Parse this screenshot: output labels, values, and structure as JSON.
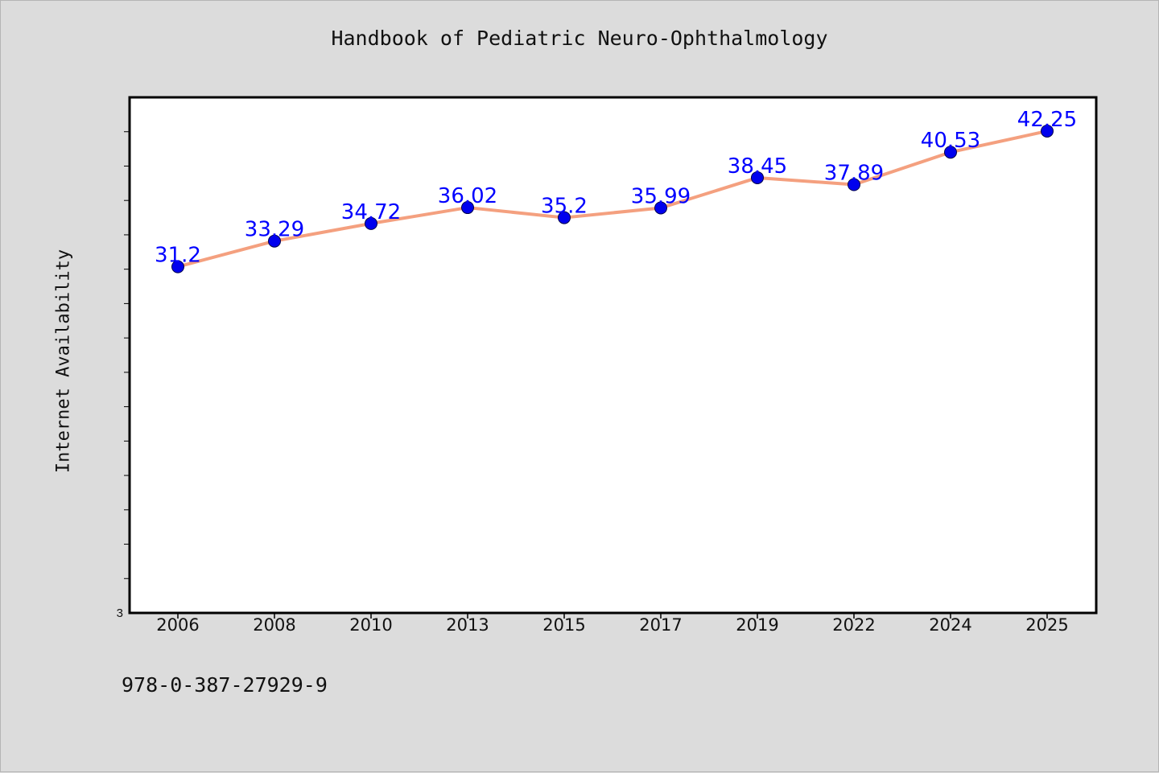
{
  "title": "Handbook of Pediatric Neuro-Ophthalmology",
  "footer_text": "978-0-387-27929-9",
  "colors": {
    "background": "#dcdcdc",
    "plot_background": "#ffffff",
    "line": "#f4a07f",
    "marker": "#0000ee",
    "label": "#0000ff"
  },
  "chart_data": {
    "type": "line",
    "title": "Handbook of Pediatric Neuro-Ophthalmology",
    "xlabel": "",
    "ylabel": "Internet Availability",
    "categories": [
      "2006",
      "2008",
      "2010",
      "2013",
      "2015",
      "2017",
      "2019",
      "2022",
      "2024",
      "2025"
    ],
    "series": [
      {
        "values": [
          31.2,
          33.29,
          34.72,
          36.02,
          35.2,
          35.99,
          38.45,
          37.89,
          40.53,
          42.25
        ]
      }
    ],
    "data_labels": [
      "31.2",
      "33.29",
      "34.72",
      "36.02",
      "35.2",
      "35.99",
      "38.45",
      "37.89",
      "40.53",
      "42.25"
    ],
    "y_tick_labels": [
      "3"
    ],
    "ylim": [
      3,
      45
    ],
    "grid": false,
    "legend": "none"
  }
}
